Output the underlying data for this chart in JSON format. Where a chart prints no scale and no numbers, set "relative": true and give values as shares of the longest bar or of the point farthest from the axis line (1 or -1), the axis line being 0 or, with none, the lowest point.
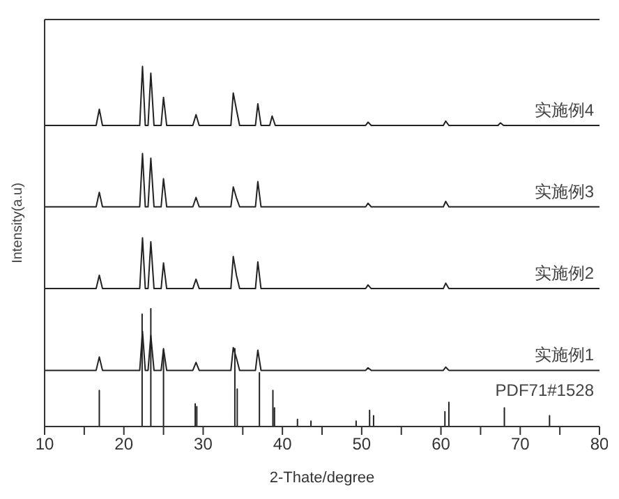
{
  "chart_data": {
    "type": "line",
    "relative": true,
    "xlabel": "2-Thate/degree",
    "ylabel": "Intensity(a.u)",
    "xlim": [
      10,
      80
    ],
    "xticks": [
      10,
      {
        "value": 15,
        "label": null
      },
      20,
      {
        "value": 25,
        "label": null
      },
      30,
      {
        "value": 35,
        "label": null
      },
      40,
      {
        "value": 45,
        "label": null
      },
      50,
      {
        "value": 55,
        "label": null
      },
      60,
      {
        "value": 65,
        "label": null
      },
      70,
      {
        "value": 75,
        "label": null
      },
      80
    ],
    "marker": "none",
    "line_style": "solid",
    "series": [
      {
        "name": "实施例4",
        "color": "#222222",
        "x": [
          10,
          16.5,
          16.9,
          17.3,
          22,
          22.35,
          22.7,
          23.05,
          23.4,
          23.8,
          24.7,
          25.0,
          25.4,
          28.7,
          29.1,
          29.5,
          33.5,
          33.8,
          34.2,
          34.6,
          36.6,
          36.9,
          37.3,
          38.4,
          38.7,
          39.1,
          50.5,
          50.8,
          51.2,
          60.3,
          60.6,
          61.0,
          67.2,
          67.5,
          67.9,
          80
        ],
        "values": [
          0.836,
          0.836,
          0.881,
          0.836,
          0.836,
          1,
          0.836,
          0.836,
          0.981,
          0.836,
          0.836,
          0.914,
          0.836,
          0.836,
          0.866,
          0.836,
          0.836,
          0.926,
          0.88,
          0.836,
          0.836,
          0.896,
          0.836,
          0.836,
          0.862,
          0.836,
          0.836,
          0.845,
          0.836,
          0.836,
          0.848,
          0.836,
          0.836,
          0.843,
          0.836,
          0.836
        ]
      },
      {
        "name": "实施例3",
        "color": "#222222",
        "x": [
          10,
          16.5,
          16.9,
          17.3,
          22,
          22.35,
          22.7,
          23.05,
          23.4,
          23.8,
          24.7,
          25.0,
          25.4,
          28.7,
          29.1,
          29.5,
          33.5,
          33.8,
          34.2,
          34.6,
          36.6,
          36.9,
          37.3,
          50.5,
          50.8,
          51.2,
          60.3,
          60.6,
          61.0,
          80
        ],
        "values": [
          0.61,
          0.61,
          0.65,
          0.61,
          0.61,
          0.758,
          0.61,
          0.61,
          0.745,
          0.61,
          0.61,
          0.688,
          0.61,
          0.61,
          0.636,
          0.61,
          0.61,
          0.665,
          0.635,
          0.61,
          0.61,
          0.68,
          0.61,
          0.61,
          0.62,
          0.61,
          0.61,
          0.625,
          0.61,
          0.61
        ]
      },
      {
        "name": "实施例2",
        "color": "#222222",
        "x": [
          10,
          16.5,
          16.9,
          17.3,
          22,
          22.35,
          22.7,
          23.05,
          23.4,
          23.8,
          24.7,
          25.0,
          25.4,
          28.7,
          29.1,
          29.5,
          33.5,
          33.8,
          34.2,
          34.6,
          36.6,
          36.9,
          37.3,
          50.5,
          50.8,
          51.2,
          60.3,
          60.6,
          61.0,
          80
        ],
        "values": [
          0.383,
          0.383,
          0.42,
          0.383,
          0.383,
          0.524,
          0.383,
          0.383,
          0.513,
          0.383,
          0.383,
          0.454,
          0.383,
          0.383,
          0.409,
          0.383,
          0.383,
          0.472,
          0.42,
          0.383,
          0.383,
          0.457,
          0.383,
          0.383,
          0.393,
          0.383,
          0.383,
          0.398,
          0.383,
          0.383
        ]
      },
      {
        "name": "实施例1",
        "color": "#222222",
        "x": [
          10,
          16.5,
          16.9,
          17.3,
          22,
          22.35,
          22.7,
          23.05,
          23.4,
          23.8,
          24.7,
          25.0,
          25.4,
          28.7,
          29.1,
          29.5,
          33.5,
          33.8,
          34.2,
          34.6,
          36.6,
          36.9,
          37.3,
          50.5,
          50.8,
          51.2,
          60.3,
          60.6,
          61.0,
          80
        ],
        "values": [
          0.156,
          0.156,
          0.193,
          0.156,
          0.156,
          0.264,
          0.156,
          0.156,
          0.253,
          0.156,
          0.156,
          0.216,
          0.156,
          0.156,
          0.178,
          0.156,
          0.156,
          0.219,
          0.19,
          0.156,
          0.156,
          0.212,
          0.156,
          0.156,
          0.163,
          0.156,
          0.156,
          0.165,
          0.156,
          0.156
        ]
      },
      {
        "name": "PDF71#1528",
        "color": "#222222",
        "x": [
          10,
          16.9,
          16.9,
          16.9,
          22.3,
          22.3,
          22.3,
          23.4,
          23.4,
          23.4,
          25.0,
          25.0,
          25.0,
          29.0,
          29.0,
          29.0,
          29.2,
          29.2,
          29.2,
          34.0,
          34.0,
          34.0,
          34.3,
          34.3,
          34.3,
          37.1,
          37.1,
          37.1,
          38.8,
          38.8,
          38.8,
          39.0,
          39.0,
          39.0,
          41.9,
          41.9,
          41.9,
          43.6,
          43.6,
          43.6,
          49.3,
          49.3,
          49.3,
          51.0,
          51.0,
          51.0,
          51.5,
          51.5,
          51.5,
          60.5,
          60.5,
          60.5,
          61.0,
          61.0,
          61.0,
          68.0,
          68.0,
          68.0,
          73.7,
          73.7,
          73.7,
          80
        ],
        "values": [
          0,
          0,
          0.1,
          0,
          0,
          0.312,
          0,
          0,
          0.327,
          0,
          0,
          0.212,
          0,
          0,
          0.063,
          0,
          0,
          0.055,
          0,
          0,
          0.216,
          0,
          0,
          0.104,
          0,
          0,
          0.149,
          0,
          0,
          0.1,
          0,
          0,
          0.052,
          0,
          0,
          0.02,
          0,
          0,
          0.015,
          0,
          0,
          0.015,
          0,
          0,
          0.045,
          0,
          0,
          0.03,
          0,
          0,
          0.041,
          0,
          0,
          0.067,
          0,
          0,
          0.052,
          0,
          0,
          0.03,
          0,
          0
        ]
      }
    ]
  }
}
